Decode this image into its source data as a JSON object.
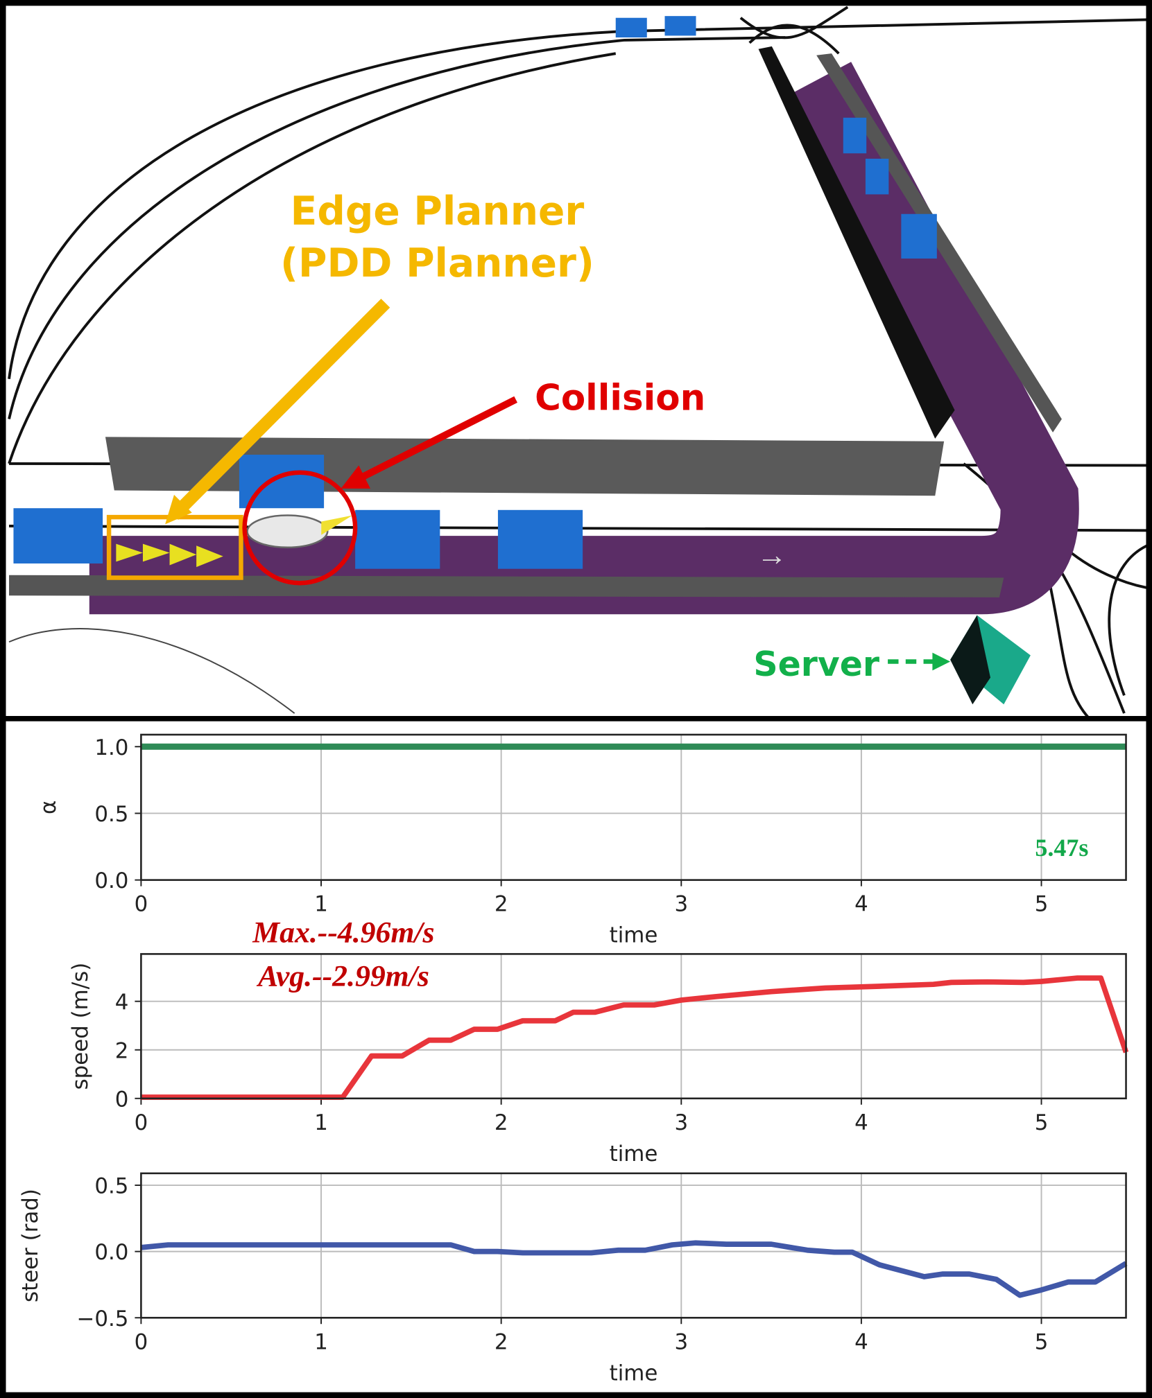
{
  "scene": {
    "edge_planner_label": "Edge Planner",
    "pdd_planner_label": "(PDD Planner)",
    "collision_label": "Collision",
    "server_label": "Server",
    "colors": {
      "planner": "#f5b800",
      "collision": "#e00000",
      "server": "#12b04a",
      "lane": "#5b2d66",
      "obstacle": "#1f6fd0",
      "wall": "#5a5a5a"
    }
  },
  "chart_data": [
    {
      "type": "line",
      "xlabel": "time",
      "ylabel": "α",
      "xlim": [
        0,
        5.47
      ],
      "ylim": [
        0,
        1.09
      ],
      "xticks": [
        "0",
        "1",
        "2",
        "3",
        "4",
        "5"
      ],
      "yticks": [
        "0.0",
        "0.5",
        "1.0"
      ],
      "ytick_values": [
        0,
        0.5,
        1.0
      ],
      "grid": true,
      "color": "#2e8b57",
      "x": [
        0,
        5.47
      ],
      "y": [
        1.0,
        1.0
      ],
      "annotation": "5.47s"
    },
    {
      "type": "line",
      "xlabel": "time",
      "ylabel": "speed (m/s)",
      "xlim": [
        0,
        5.47
      ],
      "ylim": [
        0,
        5.95
      ],
      "xticks": [
        "0",
        "1",
        "2",
        "3",
        "4",
        "5"
      ],
      "yticks": [
        "0",
        "2",
        "4"
      ],
      "ytick_values": [
        0,
        2,
        4
      ],
      "grid": true,
      "color": "#e8353b",
      "x": [
        0,
        1.12,
        1.28,
        1.45,
        1.6,
        1.72,
        1.85,
        1.98,
        2.12,
        2.3,
        2.4,
        2.52,
        2.68,
        2.85,
        3.0,
        3.2,
        3.5,
        3.8,
        4.1,
        4.4,
        4.5,
        4.7,
        4.9,
        5.0,
        5.2,
        5.33,
        5.47
      ],
      "y": [
        0.05,
        0.05,
        1.75,
        1.75,
        2.4,
        2.4,
        2.85,
        2.85,
        3.2,
        3.2,
        3.55,
        3.55,
        3.85,
        3.85,
        4.05,
        4.2,
        4.4,
        4.55,
        4.62,
        4.7,
        4.78,
        4.8,
        4.78,
        4.82,
        4.96,
        4.96,
        1.9
      ],
      "annotations": [
        "Max.--4.96m/s",
        "Avg.--2.99m/s"
      ]
    },
    {
      "type": "line",
      "xlabel": "time",
      "ylabel": "steer (rad)",
      "xlim": [
        0,
        5.47
      ],
      "ylim": [
        -0.5,
        0.59
      ],
      "xticks": [
        "0",
        "1",
        "2",
        "3",
        "4",
        "5"
      ],
      "yticks": [
        "−0.5",
        "0.0",
        "0.5"
      ],
      "ytick_values": [
        -0.5,
        0,
        0.5
      ],
      "grid": true,
      "color": "#4158a8",
      "x": [
        0,
        0.15,
        1.72,
        1.85,
        1.98,
        2.12,
        2.5,
        2.65,
        2.8,
        2.95,
        3.08,
        3.25,
        3.5,
        3.7,
        3.85,
        3.95,
        4.1,
        4.35,
        4.45,
        4.6,
        4.75,
        4.88,
        5.0,
        5.15,
        5.3,
        5.47
      ],
      "y": [
        0.03,
        0.05,
        0.05,
        0.0,
        0.0,
        -0.01,
        -0.01,
        0.01,
        0.01,
        0.05,
        0.065,
        0.055,
        0.055,
        0.01,
        -0.005,
        -0.005,
        -0.1,
        -0.19,
        -0.17,
        -0.17,
        -0.21,
        -0.33,
        -0.29,
        -0.23,
        -0.23,
        -0.09
      ]
    }
  ]
}
